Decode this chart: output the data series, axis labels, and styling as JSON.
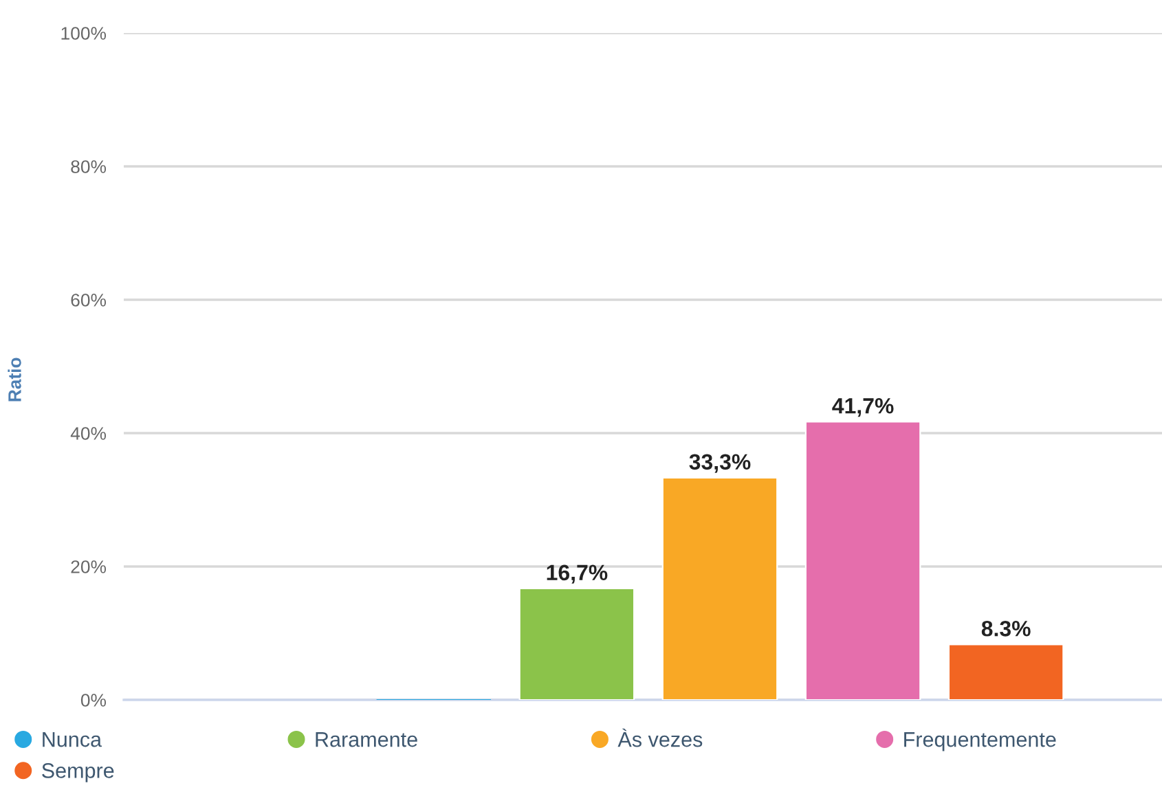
{
  "chart_data": {
    "type": "bar",
    "ylabel": "Ratio",
    "categories": [
      null
    ],
    "series": [
      {
        "name": "Nunca",
        "color": "#29a9e1",
        "values": [
          0
        ],
        "value_labels": [
          null
        ]
      },
      {
        "name": "Raramente",
        "color": "#8bc34a",
        "values": [
          16.7
        ],
        "value_labels": [
          "16,7%"
        ]
      },
      {
        "name": "Às vezes",
        "color": "#f9a825",
        "values": [
          33.3
        ],
        "value_labels": [
          "33,3%"
        ]
      },
      {
        "name": "Frequentemente",
        "color": "#e56eac",
        "values": [
          41.7
        ],
        "value_labels": [
          "41,7%"
        ]
      },
      {
        "name": "Sempre",
        "color": "#f26522",
        "values": [
          8.3
        ],
        "value_labels": [
          "8.3%"
        ]
      }
    ],
    "ylim": [
      0,
      100
    ],
    "yticks": [
      {
        "value": 0,
        "label": "0%"
      },
      {
        "value": 20,
        "label": "20%"
      },
      {
        "value": 40,
        "label": "40%"
      },
      {
        "value": 60,
        "label": "60%"
      },
      {
        "value": 80,
        "label": "80%"
      },
      {
        "value": 100,
        "label": "100%"
      }
    ],
    "grid": "y",
    "legend": "bottom"
  }
}
